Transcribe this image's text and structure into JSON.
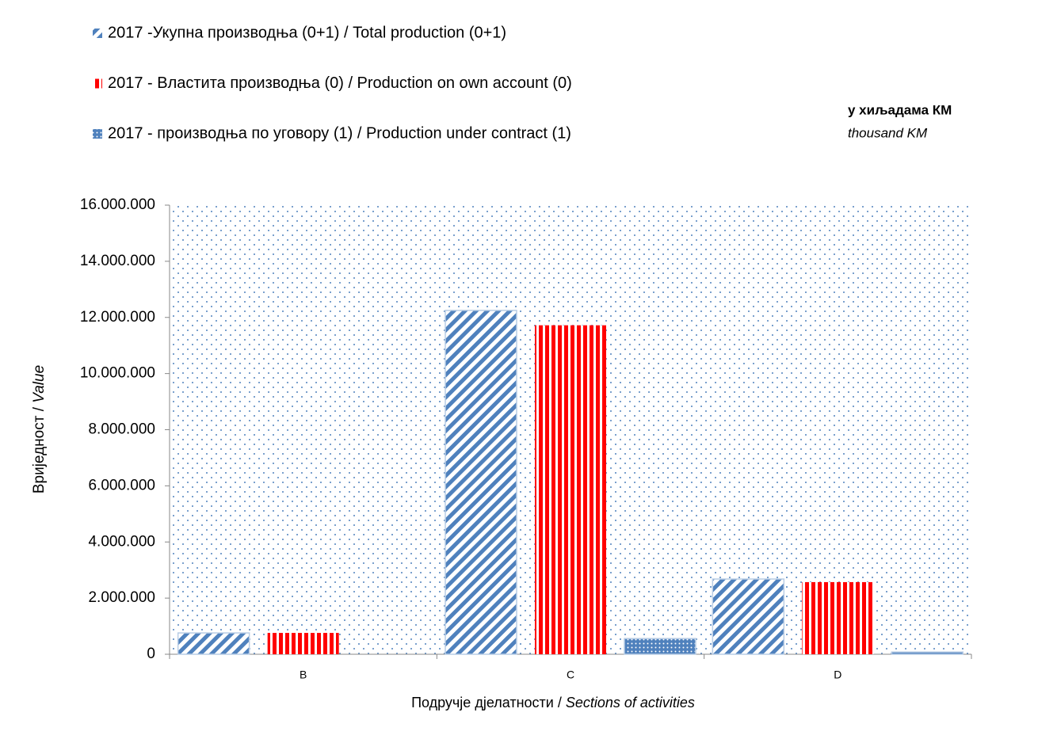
{
  "chart_data": {
    "type": "bar",
    "legend_position": "top",
    "unit_note": [
      "у хиљадама КМ",
      "thousand KM"
    ],
    "y_label": [
      "Вриједност / ",
      "Value"
    ],
    "x_label": [
      "Подручје дјелатности / ",
      "Sections of activities"
    ],
    "categories": [
      "B",
      "C",
      "D"
    ],
    "series": [
      {
        "name": "2017 -Укупна производња (0+1) / Total production (0+1)",
        "color": "#4f81bd",
        "pattern": "diagonal",
        "values": [
          760000,
          12250000,
          2680000
        ]
      },
      {
        "name": "2017 - Властита производња (0) / Production on own account (0)",
        "color": "#ff0000",
        "pattern": "vertical",
        "values": [
          760000,
          11720000,
          2570000
        ]
      },
      {
        "name": "2017 - производња по уговору (1) / Production under contract (1)",
        "color": "#4f81bd",
        "pattern": "dots",
        "values": [
          0,
          560000,
          80000
        ]
      }
    ],
    "ylim": [
      0,
      16000000
    ],
    "yticks": [
      0,
      {
        "value": 2000000,
        "label": "2.000.000"
      },
      {
        "value": 4000000,
        "label": "4.000.000"
      },
      {
        "value": 6000000,
        "label": "6.000.000"
      },
      {
        "value": 8000000,
        "label": "8.000.000"
      },
      {
        "value": 10000000,
        "label": "10.000.000"
      },
      {
        "value": 12000000,
        "label": "12.000.000"
      },
      {
        "value": 14000000,
        "label": "14.000.000"
      },
      {
        "value": 16000000,
        "label": "16.000.000"
      }
    ]
  }
}
